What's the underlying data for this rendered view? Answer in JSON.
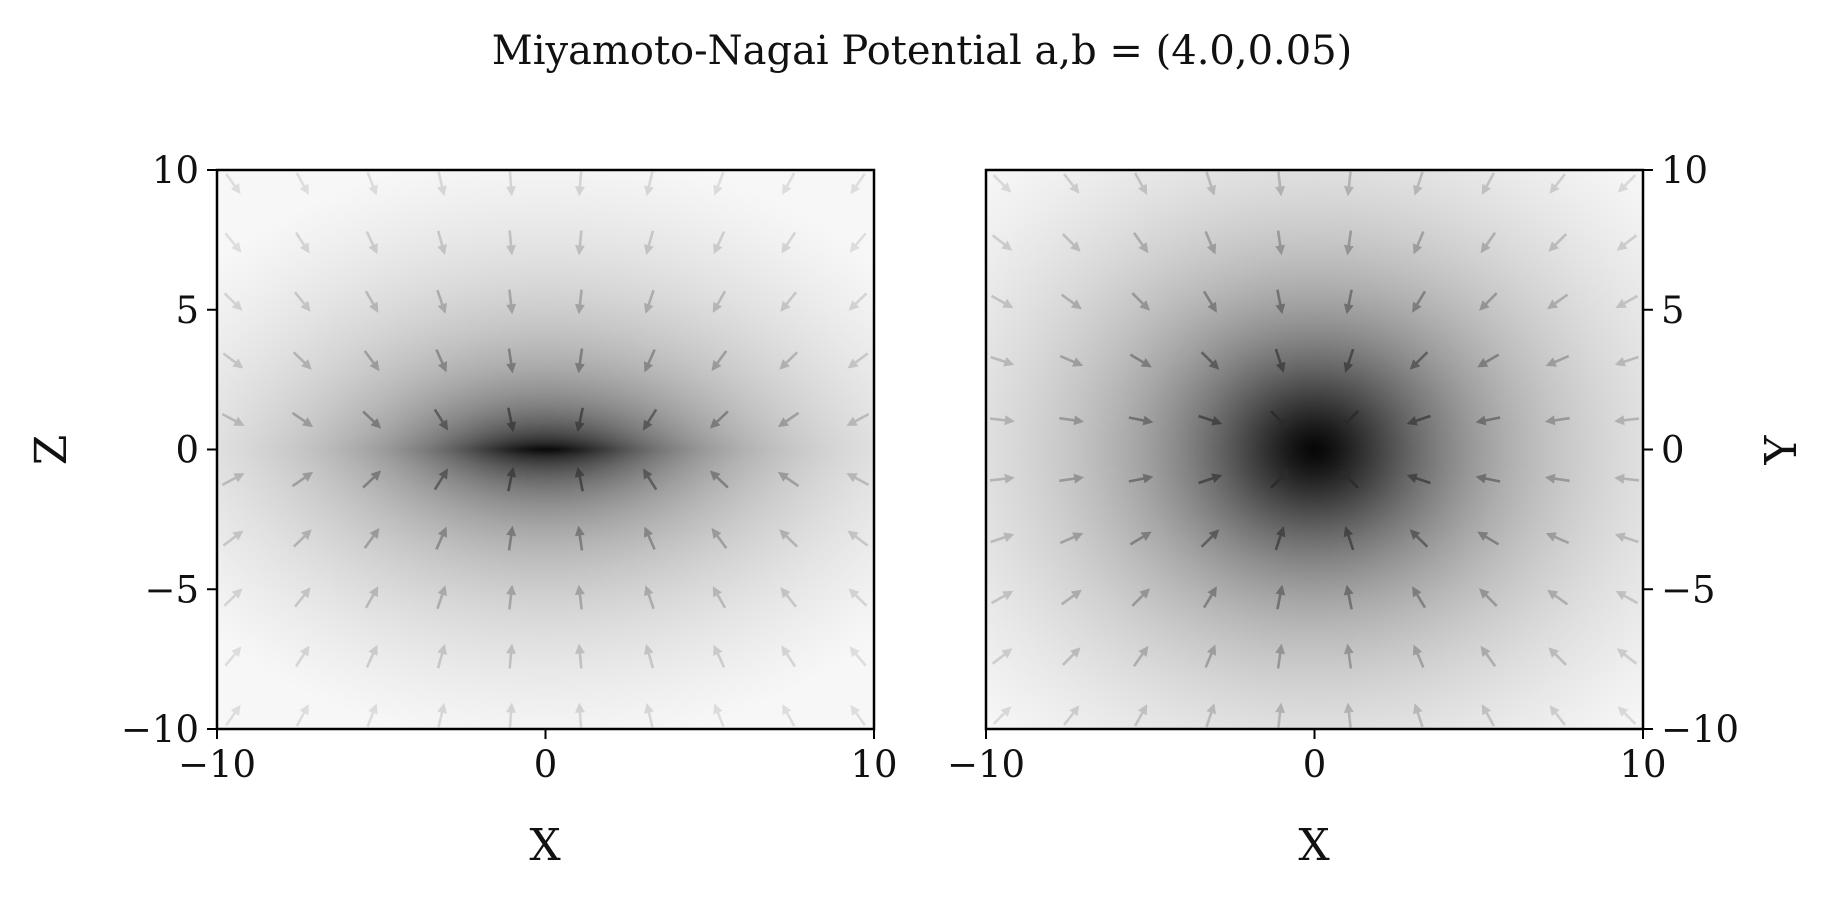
{
  "chart_data": {
    "title": "Miyamoto-Nagai Potential a,b = (4.0,0.05)",
    "panels": [
      {
        "type": "heatmap",
        "view": "xz",
        "xlabel": "X",
        "ylabel": "Z",
        "ylabel_side": "left",
        "xlim": [
          -10,
          10
        ],
        "ylim": [
          -10,
          10
        ],
        "xticks": [
          -10,
          0,
          10
        ],
        "yticks": [
          -10,
          -5,
          0,
          5,
          10
        ],
        "xtick_labels": [
          "−10",
          "0",
          "10"
        ],
        "ytick_labels": [
          "−10",
          "−5",
          "0",
          "5",
          "10"
        ],
        "colormap": "greys",
        "overlay": "quiver",
        "grid": false
      },
      {
        "type": "heatmap",
        "view": "xy",
        "xlabel": "X",
        "ylabel": "Y",
        "ylabel_side": "right",
        "xlim": [
          -10,
          10
        ],
        "ylim": [
          -10,
          10
        ],
        "xticks": [
          -10,
          0,
          10
        ],
        "yticks": [
          -10,
          -5,
          0,
          5,
          10
        ],
        "xtick_labels": [
          "−10",
          "0",
          "10"
        ],
        "ytick_labels": [
          "−10",
          "−5",
          "0",
          "5",
          "10"
        ],
        "colormap": "greys",
        "overlay": "quiver",
        "grid": false
      }
    ],
    "potential": {
      "a": 4.0,
      "b": 0.05
    },
    "quiver_grid": {
      "min": -9.5,
      "max": 9.5,
      "count": 10
    }
  }
}
